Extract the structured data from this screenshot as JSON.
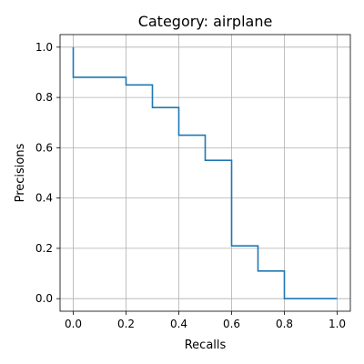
{
  "chart_data": {
    "type": "line",
    "drawstyle": "steps",
    "title": "Category: airplane",
    "xlabel": "Recalls",
    "ylabel": "Precisions",
    "xlim": [
      -0.05,
      1.05
    ],
    "ylim": [
      -0.05,
      1.05
    ],
    "grid": true,
    "x_ticks": [
      0.0,
      0.2,
      0.4,
      0.6,
      0.8,
      1.0
    ],
    "y_ticks": [
      0.0,
      0.2,
      0.4,
      0.6,
      0.8,
      1.0
    ],
    "x_tick_labels": [
      "0.0",
      "0.2",
      "0.4",
      "0.6",
      "0.8",
      "1.0"
    ],
    "y_tick_labels": [
      "0.0",
      "0.2",
      "0.4",
      "0.6",
      "0.8",
      "1.0"
    ],
    "line_color": "#1f77b4",
    "x": [
      0.0,
      0.0,
      0.2,
      0.2,
      0.3,
      0.3,
      0.4,
      0.4,
      0.5,
      0.5,
      0.6,
      0.6,
      0.7,
      0.7,
      0.8,
      0.8,
      1.0
    ],
    "y": [
      1.0,
      0.88,
      0.88,
      0.85,
      0.85,
      0.76,
      0.76,
      0.65,
      0.65,
      0.55,
      0.55,
      0.21,
      0.21,
      0.11,
      0.11,
      0.0,
      0.0
    ]
  }
}
